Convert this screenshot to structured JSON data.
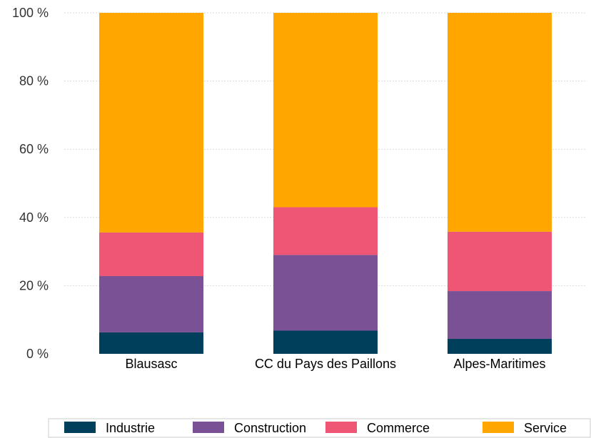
{
  "chart_data": {
    "type": "bar",
    "stacked": true,
    "orientation": "vertical",
    "categories": [
      "Blausasc",
      "CC du Pays des Paillons",
      "Alpes-Maritimes"
    ],
    "series": [
      {
        "name": "Industrie",
        "color": "#003f5c",
        "values": [
          6.3,
          6.8,
          4.4
        ]
      },
      {
        "name": "Construction",
        "color": "#7a5195",
        "values": [
          16.5,
          22.2,
          14.0
        ]
      },
      {
        "name": "Commerce",
        "color": "#ef5675",
        "values": [
          12.8,
          14.0,
          17.4
        ]
      },
      {
        "name": "Service",
        "color": "#ffa600",
        "values": [
          64.4,
          57.0,
          64.2
        ]
      }
    ],
    "ylim": [
      0,
      100
    ],
    "yticks": [
      0,
      20,
      40,
      60,
      80,
      100
    ],
    "ytick_labels": [
      "0 %",
      "20 %",
      "40 %",
      "60 %",
      "80 %",
      "100 %"
    ],
    "grid": true,
    "legend_position": "bottom"
  }
}
